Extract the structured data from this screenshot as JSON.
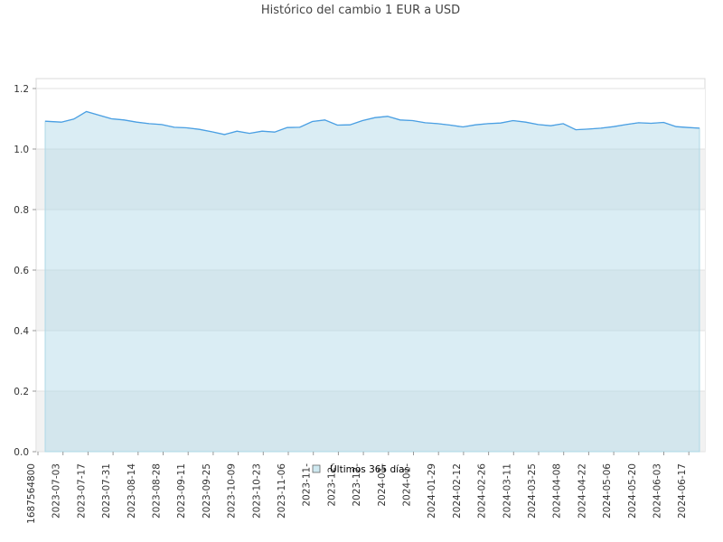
{
  "chart_data": {
    "type": "area",
    "title": "Histórico del cambio 1 EUR a USD",
    "xlabel": "",
    "ylabel": "",
    "ylim": [
      0,
      1.2
    ],
    "yticks": [
      "0.0",
      "0.2",
      "0.4",
      "0.6",
      "0.8",
      "1.0",
      "1.2"
    ],
    "xticks": [
      "1687564800",
      "2023-07-03",
      "2023-07-17",
      "2023-07-31",
      "2023-08-14",
      "2023-08-28",
      "2023-09-11",
      "2023-09-25",
      "2023-10-09",
      "2023-10-23",
      "2023-11-06",
      "2023-11-",
      "2023-12-",
      "2023-12-",
      "2024-01-",
      "2024-01-",
      "2024-01-29",
      "2024-02-12",
      "2024-02-26",
      "2024-03-11",
      "2024-03-25",
      "2024-04-08",
      "2024-04-22",
      "2024-05-06",
      "2024-05-20",
      "2024-06-03",
      "2024-06-17"
    ],
    "legend": "bottom-center",
    "grid": true,
    "series": [
      {
        "name": "Últimos 365 días",
        "x": [
          "2023-06-24",
          "2023-07-03",
          "2023-07-10",
          "2023-07-17",
          "2023-07-24",
          "2023-07-31",
          "2023-08-07",
          "2023-08-14",
          "2023-08-21",
          "2023-08-28",
          "2023-09-04",
          "2023-09-11",
          "2023-09-18",
          "2023-09-25",
          "2023-10-02",
          "2023-10-09",
          "2023-10-16",
          "2023-10-23",
          "2023-10-30",
          "2023-11-06",
          "2023-11-13",
          "2023-11-20",
          "2023-11-27",
          "2023-12-04",
          "2023-12-11",
          "2023-12-18",
          "2023-12-25",
          "2024-01-01",
          "2024-01-08",
          "2024-01-15",
          "2024-01-22",
          "2024-01-29",
          "2024-02-05",
          "2024-02-12",
          "2024-02-19",
          "2024-02-26",
          "2024-03-04",
          "2024-03-11",
          "2024-03-18",
          "2024-03-25",
          "2024-04-01",
          "2024-04-08",
          "2024-04-15",
          "2024-04-22",
          "2024-04-29",
          "2024-05-06",
          "2024-05-13",
          "2024-05-20",
          "2024-05-27",
          "2024-06-03",
          "2024-06-10",
          "2024-06-17",
          "2024-06-23"
        ],
        "y": [
          1.092,
          1.089,
          1.099,
          1.124,
          1.112,
          1.1,
          1.096,
          1.089,
          1.084,
          1.081,
          1.072,
          1.07,
          1.065,
          1.057,
          1.048,
          1.059,
          1.052,
          1.059,
          1.056,
          1.071,
          1.072,
          1.091,
          1.096,
          1.079,
          1.08,
          1.094,
          1.104,
          1.108,
          1.096,
          1.094,
          1.087,
          1.084,
          1.079,
          1.073,
          1.08,
          1.084,
          1.086,
          1.094,
          1.089,
          1.081,
          1.077,
          1.084,
          1.064,
          1.066,
          1.069,
          1.074,
          1.081,
          1.087,
          1.085,
          1.088,
          1.074,
          1.071,
          1.069
        ]
      }
    ],
    "colors": {
      "line": "#4a9fe3",
      "area": "#add8e6",
      "band": "#f2f2f2",
      "grid": "#e2e2e2",
      "border": "#d9d9d9"
    }
  }
}
